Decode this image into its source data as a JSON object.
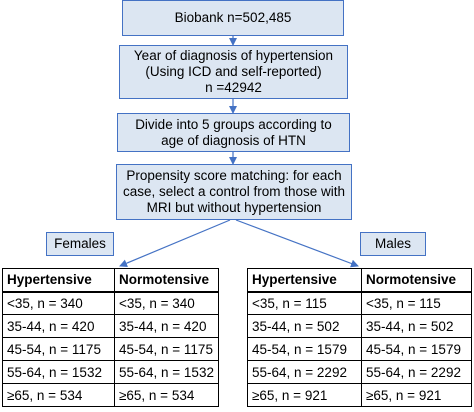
{
  "flow": {
    "biobank": "Biobank n=502,485",
    "diagnosis_line1": "Year of diagnosis of hypertension",
    "diagnosis_line2": "(Using ICD and self-reported)",
    "diagnosis_line3": "n =42942",
    "divide_line1": "Divide into 5 groups according to",
    "divide_line2": "age of diagnosis of HTN",
    "matching_line1": "Propensity score matching: for each",
    "matching_line2": "case, select a control from those with",
    "matching_line3": "MRI but without hypertension"
  },
  "females": {
    "label": "Females",
    "headers": [
      "Hypertensive",
      "Normotensive"
    ],
    "rows": [
      [
        "<35, n = 340",
        "<35, n = 340"
      ],
      [
        "35-44, n = 420",
        "35-44, n = 420"
      ],
      [
        "45-54, n = 1175",
        "45-54, n = 1175"
      ],
      [
        "55-64, n = 1532",
        "55-64, n = 1532"
      ],
      [
        "≥65, n = 534",
        "≥65, n = 534"
      ]
    ]
  },
  "males": {
    "label": "Males",
    "headers": [
      "Hypertensive",
      "Normotensive"
    ],
    "rows": [
      [
        "<35, n = 115",
        "<35, n = 115"
      ],
      [
        "35-44, n = 502",
        "35-44, n = 502"
      ],
      [
        "45-54, n = 1579",
        "45-54, n = 1579"
      ],
      [
        "55-64, n = 2292",
        "55-64, n = 2292"
      ],
      [
        "≥65, n = 921",
        "≥65, n = 921"
      ]
    ]
  },
  "colors": {
    "box_fill": "#dce6f2",
    "box_border": "#4472c4",
    "arrow": "#4472c4"
  }
}
